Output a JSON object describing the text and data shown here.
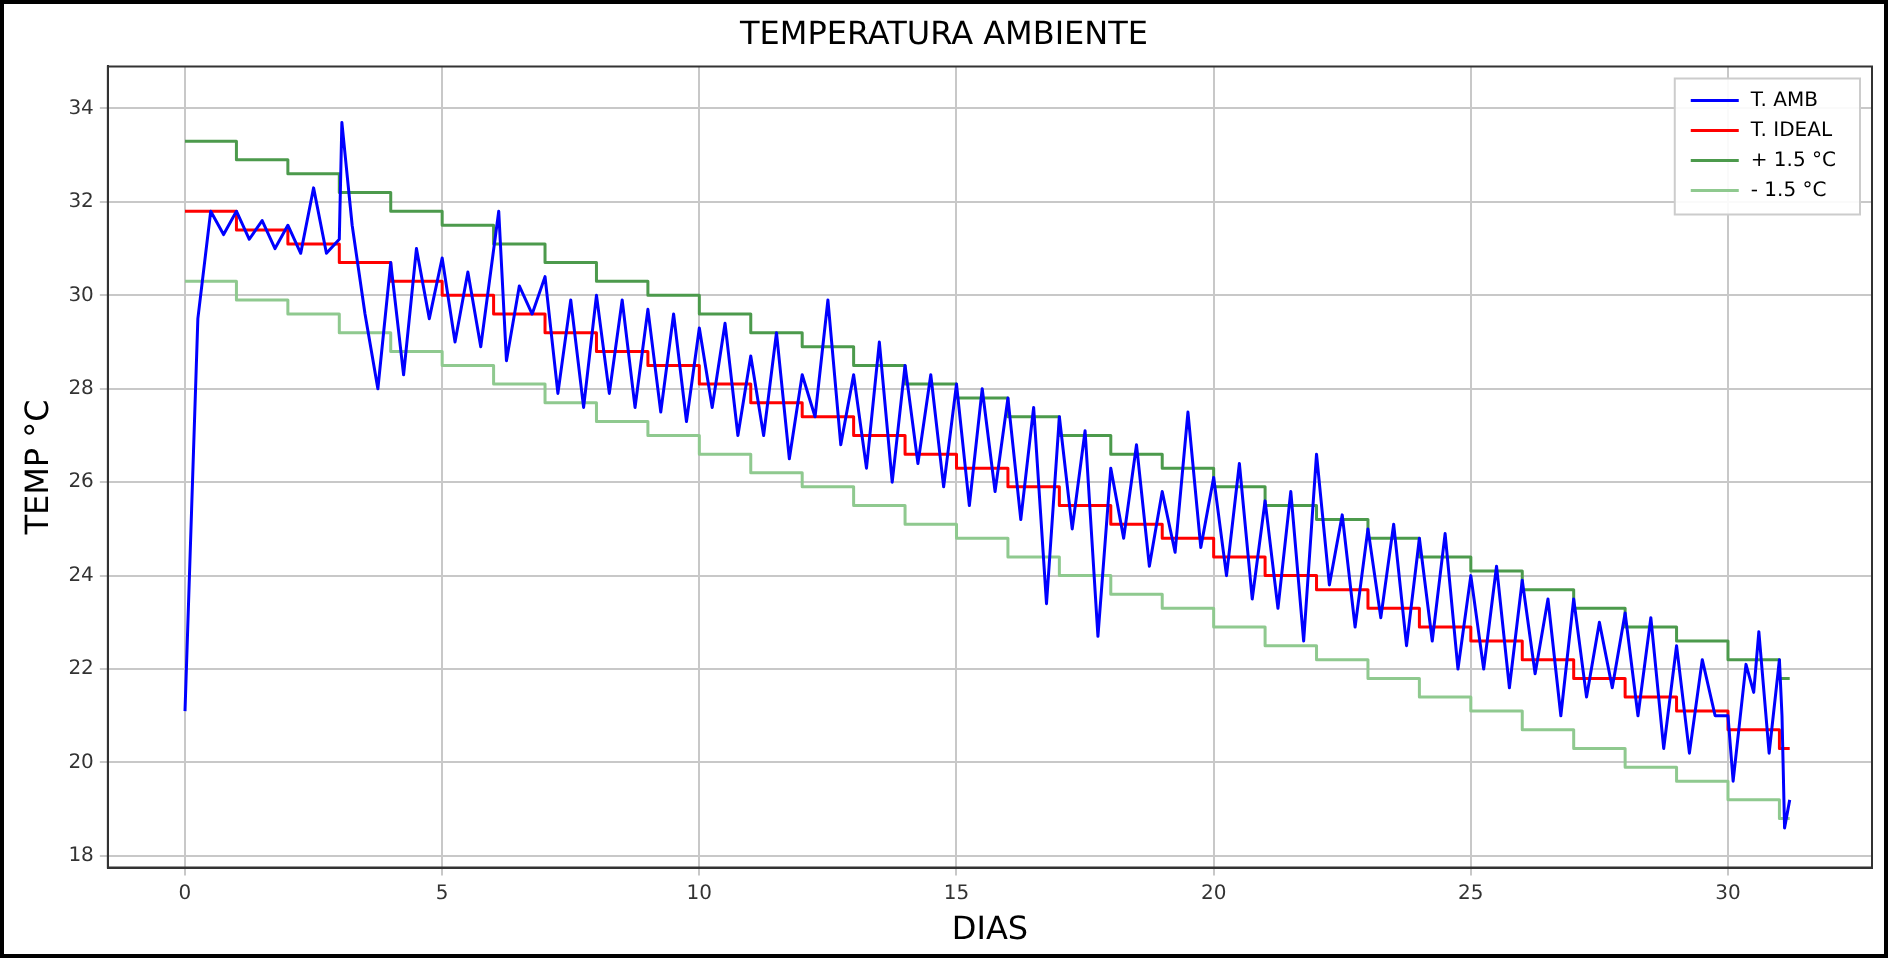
{
  "chart_data": {
    "type": "line",
    "title": "TEMPERATURA AMBIENTE",
    "xlabel": "DIAS",
    "ylabel": "TEMP °C",
    "xlim": [
      -1.5,
      32.8
    ],
    "ylim": [
      17.75,
      34.9
    ],
    "xticks": [
      0,
      5,
      10,
      15,
      20,
      25,
      30
    ],
    "yticks": [
      18,
      20,
      22,
      24,
      26,
      28,
      30,
      32,
      34
    ],
    "grid": true,
    "legend": "top right",
    "series": [
      {
        "name": "T. AMB",
        "type": "line",
        "color": "#0000ff",
        "x": [
          0,
          0.25,
          0.5,
          0.75,
          1,
          1.25,
          1.5,
          1.75,
          2,
          2.25,
          2.5,
          2.75,
          3,
          3.05,
          3.25,
          3.5,
          3.75,
          4,
          4.25,
          4.5,
          4.75,
          5,
          5.25,
          5.5,
          5.75,
          6.1,
          6.25,
          6.5,
          6.75,
          7,
          7.25,
          7.5,
          7.75,
          8,
          8.25,
          8.5,
          8.75,
          9,
          9.25,
          9.5,
          9.75,
          10,
          10.25,
          10.5,
          10.75,
          11,
          11.25,
          11.5,
          11.75,
          12,
          12.25,
          12.5,
          12.75,
          13,
          13.25,
          13.5,
          13.75,
          14,
          14.25,
          14.5,
          14.75,
          15,
          15.25,
          15.5,
          15.75,
          16,
          16.25,
          16.5,
          16.75,
          17,
          17.25,
          17.5,
          17.75,
          18,
          18.25,
          18.5,
          18.75,
          19,
          19.25,
          19.5,
          19.75,
          20,
          20.25,
          20.5,
          20.75,
          21,
          21.25,
          21.5,
          21.75,
          22,
          22.25,
          22.5,
          22.75,
          23,
          23.25,
          23.5,
          23.75,
          24,
          24.25,
          24.5,
          24.75,
          25,
          25.25,
          25.5,
          25.75,
          26,
          26.25,
          26.5,
          26.75,
          27,
          27.25,
          27.5,
          27.75,
          28,
          28.25,
          28.5,
          28.75,
          29,
          29.25,
          29.5,
          29.75,
          30,
          30.1,
          30.35,
          30.5,
          30.6,
          30.8,
          31,
          31.05,
          31.1,
          31.2
        ],
        "values": [
          21.1,
          29.5,
          31.8,
          31.3,
          31.8,
          31.2,
          31.6,
          31.0,
          31.5,
          30.9,
          32.3,
          30.9,
          31.2,
          33.7,
          31.5,
          29.6,
          28.0,
          30.7,
          28.3,
          31.0,
          29.5,
          30.8,
          29.0,
          30.5,
          28.9,
          31.8,
          28.6,
          30.2,
          29.6,
          30.4,
          27.9,
          29.9,
          27.6,
          30.0,
          27.9,
          29.9,
          27.6,
          29.7,
          27.5,
          29.6,
          27.3,
          29.3,
          27.6,
          29.4,
          27.0,
          28.7,
          27.0,
          29.2,
          26.5,
          28.3,
          27.4,
          29.9,
          26.8,
          28.3,
          26.3,
          29.0,
          26.0,
          28.5,
          26.4,
          28.3,
          25.9,
          28.1,
          25.5,
          28.0,
          25.8,
          27.8,
          25.2,
          27.6,
          23.4,
          27.4,
          25.0,
          27.1,
          22.7,
          26.3,
          24.8,
          26.8,
          24.2,
          25.8,
          24.5,
          27.5,
          24.6,
          26.1,
          24.0,
          26.4,
          23.5,
          25.6,
          23.3,
          25.8,
          22.6,
          26.6,
          23.8,
          25.3,
          22.9,
          25.0,
          23.1,
          25.1,
          22.5,
          24.8,
          22.6,
          24.9,
          22.0,
          24.0,
          22.0,
          24.2,
          21.6,
          23.9,
          21.9,
          23.5,
          21.0,
          23.5,
          21.4,
          23.0,
          21.6,
          23.2,
          21.0,
          23.1,
          20.3,
          22.5,
          20.2,
          22.2,
          21.0,
          21.0,
          19.6,
          22.1,
          21.5,
          22.8,
          20.2,
          22.2,
          21.0,
          18.6,
          19.2
        ]
      },
      {
        "name": "T. IDEAL",
        "type": "step",
        "color": "#ff0000",
        "x": [
          0,
          1,
          2,
          3,
          4,
          5,
          6,
          7,
          8,
          9,
          10,
          11,
          12,
          13,
          14,
          15,
          16,
          17,
          18,
          19,
          20,
          21,
          22,
          23,
          24,
          25,
          26,
          27,
          28,
          29,
          30,
          31,
          31.2
        ],
        "values": [
          31.8,
          31.4,
          31.1,
          30.7,
          30.3,
          30.0,
          29.6,
          29.2,
          28.8,
          28.5,
          28.1,
          27.7,
          27.4,
          27.0,
          26.6,
          26.3,
          25.9,
          25.5,
          25.1,
          24.8,
          24.4,
          24.0,
          23.7,
          23.3,
          22.9,
          22.6,
          22.2,
          21.8,
          21.4,
          21.1,
          20.7,
          20.3,
          20.3
        ]
      },
      {
        "name": "+ 1.5 °C",
        "type": "step",
        "color": "#4c9a4c",
        "x": [
          0,
          1,
          2,
          3,
          4,
          5,
          6,
          7,
          8,
          9,
          10,
          11,
          12,
          13,
          14,
          15,
          16,
          17,
          18,
          19,
          20,
          21,
          22,
          23,
          24,
          25,
          26,
          27,
          28,
          29,
          30,
          31,
          31.2
        ],
        "values": [
          33.3,
          32.9,
          32.6,
          32.2,
          31.8,
          31.5,
          31.1,
          30.7,
          30.3,
          30.0,
          29.6,
          29.2,
          28.9,
          28.5,
          28.1,
          27.8,
          27.4,
          27.0,
          26.6,
          26.3,
          25.9,
          25.5,
          25.2,
          24.8,
          24.4,
          24.1,
          23.7,
          23.3,
          22.9,
          22.6,
          22.2,
          21.8,
          21.8
        ]
      },
      {
        "name": "- 1.5 °C",
        "type": "step",
        "color": "#8fc98f",
        "x": [
          0,
          1,
          2,
          3,
          4,
          5,
          6,
          7,
          8,
          9,
          10,
          11,
          12,
          13,
          14,
          15,
          16,
          17,
          18,
          19,
          20,
          21,
          22,
          23,
          24,
          25,
          26,
          27,
          28,
          29,
          30,
          31,
          31.2
        ],
        "values": [
          30.3,
          29.9,
          29.6,
          29.2,
          28.8,
          28.5,
          28.1,
          27.7,
          27.3,
          27.0,
          26.6,
          26.2,
          25.9,
          25.5,
          25.1,
          24.8,
          24.4,
          24.0,
          23.6,
          23.3,
          22.9,
          22.5,
          22.2,
          21.8,
          21.4,
          21.1,
          20.7,
          20.3,
          19.9,
          19.6,
          19.2,
          18.8,
          18.8
        ]
      }
    ]
  }
}
